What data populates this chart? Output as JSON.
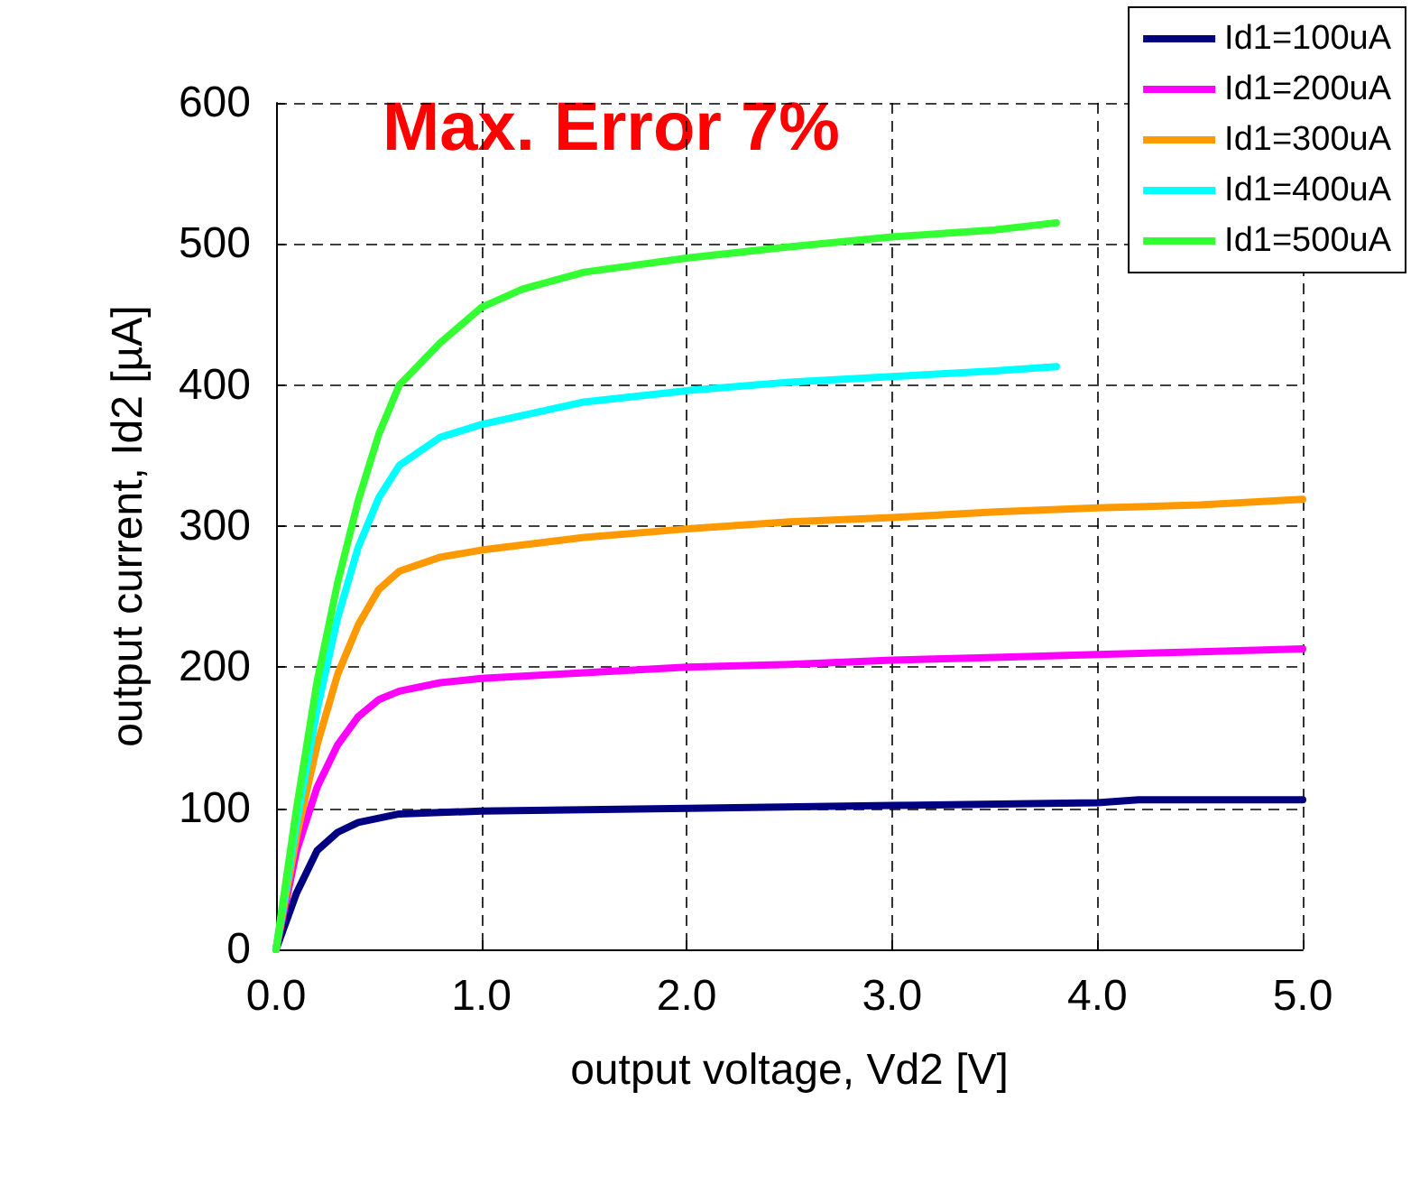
{
  "chart_data": {
    "type": "line",
    "xlabel": "output voltage, Vd2 [V]",
    "ylabel": "output current, Id2 [µA]",
    "annotations": [
      "Max. Error 7%"
    ],
    "xlim": [
      0,
      5
    ],
    "xticks": [
      {
        "value": 0,
        "label": "0.0"
      },
      {
        "value": 1,
        "label": "1.0"
      },
      {
        "value": 2,
        "label": "2.0"
      },
      {
        "value": 3,
        "label": "3.0"
      },
      {
        "value": 4,
        "label": "4.0"
      },
      {
        "value": 5,
        "label": "5.0"
      }
    ],
    "ylim": [
      0,
      600
    ],
    "yticks": [
      0,
      100,
      200,
      300,
      400,
      500,
      600
    ],
    "grid": true,
    "legend": "top right",
    "marker": "none",
    "line_style": "solid",
    "series": [
      {
        "name": "Id1=100uA",
        "color": "#000080",
        "x": [
          0,
          0.1,
          0.2,
          0.3,
          0.4,
          0.5,
          0.6,
          0.8,
          1,
          1.5,
          2,
          3,
          4,
          4.2,
          5
        ],
        "values": [
          0,
          40,
          70,
          83,
          90,
          93,
          96,
          97,
          98,
          99,
          100,
          102,
          104,
          106,
          106
        ]
      },
      {
        "name": "Id1=200uA",
        "color": "#ff00ff",
        "x": [
          0,
          0.1,
          0.2,
          0.3,
          0.4,
          0.5,
          0.6,
          0.8,
          1,
          1.5,
          2,
          2.5,
          3,
          3.5,
          4,
          4.5,
          5
        ],
        "values": [
          0,
          70,
          115,
          145,
          165,
          177,
          183,
          189,
          192,
          196,
          200,
          202,
          205,
          207,
          209,
          211,
          213
        ]
      },
      {
        "name": "Id1=300uA",
        "color": "#ff9900",
        "x": [
          0,
          0.1,
          0.2,
          0.3,
          0.4,
          0.5,
          0.6,
          0.8,
          1,
          1.5,
          2,
          2.5,
          3,
          3.5,
          4,
          4.5,
          5
        ],
        "values": [
          0,
          80,
          145,
          195,
          230,
          255,
          268,
          278,
          283,
          292,
          298,
          303,
          306,
          310,
          313,
          315,
          319
        ]
      },
      {
        "name": "Id1=400uA",
        "color": "#00ffff",
        "x": [
          0,
          0.1,
          0.2,
          0.3,
          0.4,
          0.5,
          0.6,
          0.8,
          1,
          1.5,
          2,
          2.5,
          3,
          3.5,
          3.8
        ],
        "values": [
          0,
          90,
          170,
          235,
          285,
          320,
          343,
          363,
          372,
          388,
          396,
          402,
          406,
          410,
          413
        ]
      },
      {
        "name": "Id1=500uA",
        "color": "#33ff33",
        "x": [
          0,
          0.1,
          0.2,
          0.3,
          0.4,
          0.5,
          0.6,
          0.8,
          1,
          1.2,
          1.5,
          2,
          2.5,
          3,
          3.5,
          3.8
        ],
        "values": [
          0,
          100,
          190,
          260,
          318,
          365,
          400,
          430,
          455,
          468,
          480,
          490,
          498,
          505,
          510,
          515
        ]
      }
    ]
  }
}
